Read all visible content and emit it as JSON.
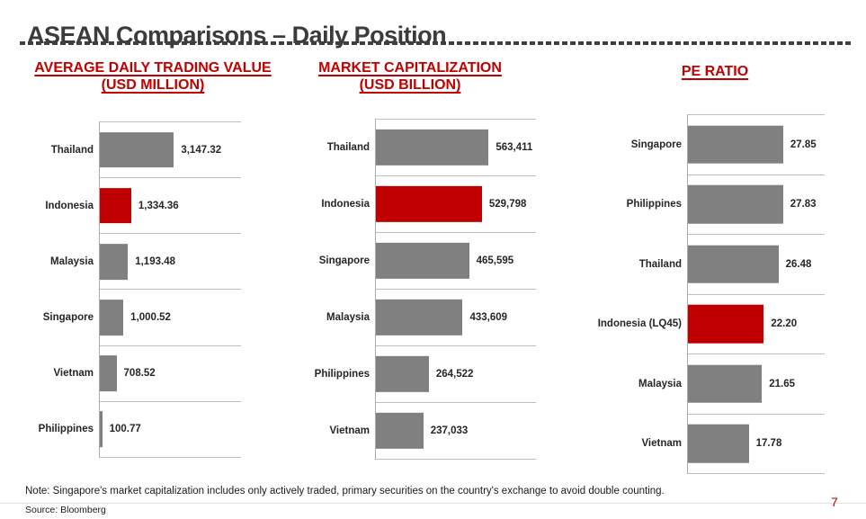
{
  "page": {
    "title": "ASEAN Comparisons – Daily Position",
    "note": "Note: Singapore's market capitalization includes only actively traded, primary securities on the country's exchange to avoid double counting.",
    "source": "Source: Bloomberg",
    "page_number": "7"
  },
  "colors": {
    "bar_gray": "#808080",
    "highlight_red": "#c00000",
    "title_red": "#c00000",
    "heading_gray": "#3b3b3b",
    "gridline": "#bfbfbf"
  },
  "chart_data": [
    {
      "type": "bar",
      "orientation": "horizontal",
      "title": "AVERAGE DAILY TRADING VALUE",
      "subtitle": "(USD MILLION)",
      "categories": [
        "Thailand",
        "Indonesia",
        "Malaysia",
        "Singapore",
        "Vietnam",
        "Philippines"
      ],
      "values": [
        3147.32,
        1334.36,
        1193.48,
        1000.52,
        708.52,
        100.77
      ],
      "value_labels": [
        "3,147.32",
        "1,334.36",
        "1,193.48",
        "1,000.52",
        "708.52",
        "100.77"
      ],
      "highlight_category": "Indonesia",
      "xlim": [
        0,
        6000
      ],
      "grid": true,
      "legend": "none"
    },
    {
      "type": "bar",
      "orientation": "horizontal",
      "title": "MARKET CAPITALIZATION",
      "subtitle": "(USD BILLION)",
      "categories": [
        "Thailand",
        "Indonesia",
        "Singapore",
        "Malaysia",
        "Philippines",
        "Vietnam"
      ],
      "values": [
        563411,
        529798,
        465595,
        433609,
        264522,
        237033
      ],
      "value_labels": [
        "563,411",
        "529,798",
        "465,595",
        "433,609",
        "264,522",
        "237,033"
      ],
      "highlight_category": "Indonesia",
      "xlim": [
        0,
        800000
      ],
      "grid": true,
      "legend": "none"
    },
    {
      "type": "bar",
      "orientation": "horizontal",
      "title": "PE RATIO",
      "subtitle": "",
      "categories": [
        "Singapore",
        "Philippines",
        "Thailand",
        "Indonesia (LQ45)",
        "Malaysia",
        "Vietnam"
      ],
      "values": [
        27.85,
        27.83,
        26.48,
        22.2,
        21.65,
        17.78
      ],
      "value_labels": [
        "27.85",
        "27.83",
        "26.48",
        "22.20",
        "21.65",
        "17.78"
      ],
      "highlight_category": "Indonesia (LQ45)",
      "xlim": [
        0,
        40
      ],
      "grid": true,
      "legend": "none"
    }
  ]
}
